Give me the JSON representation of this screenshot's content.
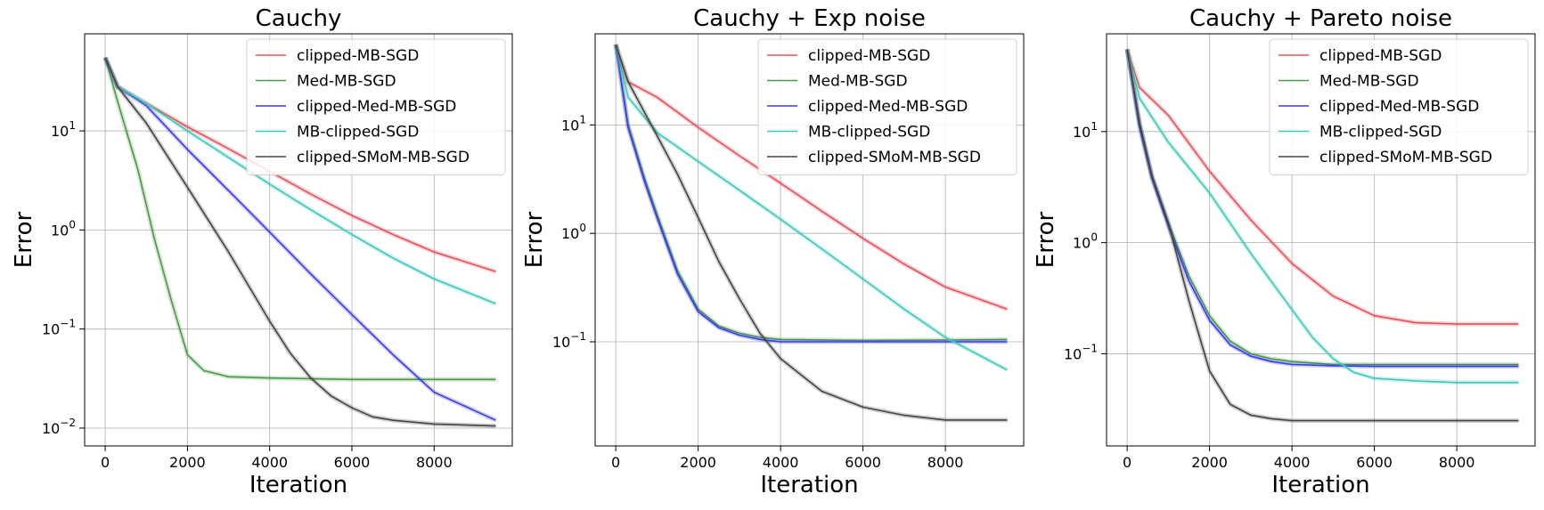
{
  "chart_data": [
    {
      "type": "line",
      "title": "Cauchy",
      "xlabel": "Iteration",
      "ylabel": "Error",
      "yscale": "log",
      "xlim": [
        -500,
        9900
      ],
      "ylim_exp": [
        -2.18,
        1.98
      ],
      "xticks": [
        0,
        2000,
        4000,
        6000,
        8000
      ],
      "yticks": [
        {
          "exp": 1,
          "label": "10^1"
        },
        {
          "exp": 0,
          "label": "10^0"
        },
        {
          "exp": -1,
          "label": "10^−1"
        },
        {
          "exp": -2,
          "label": "10^−2"
        }
      ],
      "legend_position": "top-right",
      "series": [
        {
          "name": "clipped-MB-SGD",
          "color": "#e8505a",
          "x": [
            0,
            300,
            1000,
            2000,
            3000,
            4000,
            5000,
            6000,
            7000,
            8000,
            9500
          ],
          "y": [
            55,
            28,
            19,
            11,
            6.6,
            3.9,
            2.3,
            1.4,
            0.9,
            0.6,
            0.38
          ]
        },
        {
          "name": "Med-MB-SGD",
          "color": "#4a9a4a",
          "x": [
            0,
            300,
            800,
            1200,
            1600,
            2000,
            2400,
            3000,
            4000,
            6000,
            8000,
            9500
          ],
          "y": [
            55,
            20,
            4,
            0.8,
            0.2,
            0.055,
            0.038,
            0.033,
            0.032,
            0.031,
            0.031,
            0.031
          ]
        },
        {
          "name": "clipped-Med-MB-SGD",
          "color": "#3a3ae8",
          "x": [
            0,
            300,
            1000,
            2000,
            3000,
            4000,
            5000,
            6000,
            7000,
            8000,
            9500
          ],
          "y": [
            55,
            28,
            18,
            6.5,
            2.5,
            0.95,
            0.36,
            0.14,
            0.055,
            0.023,
            0.012
          ]
        },
        {
          "name": "MB-clipped-SGD",
          "color": "#40c8b8",
          "x": [
            0,
            300,
            1000,
            2000,
            3000,
            4000,
            5000,
            6000,
            7000,
            8000,
            9500
          ],
          "y": [
            55,
            28,
            19,
            10,
            5.4,
            2.9,
            1.6,
            0.9,
            0.52,
            0.32,
            0.18
          ]
        },
        {
          "name": "clipped-SMoM-MB-SGD",
          "color": "#444444",
          "x": [
            0,
            300,
            1000,
            2000,
            3000,
            4000,
            4500,
            5000,
            5500,
            6000,
            6500,
            7000,
            8000,
            9500
          ],
          "y": [
            55,
            28,
            12,
            2.7,
            0.6,
            0.12,
            0.057,
            0.032,
            0.021,
            0.016,
            0.013,
            0.012,
            0.011,
            0.0105
          ]
        }
      ]
    },
    {
      "type": "line",
      "title": "Cauchy + Exp noise",
      "xlabel": "Iteration",
      "ylabel": "Error",
      "yscale": "log",
      "xlim": [
        -500,
        9900
      ],
      "ylim_exp": [
        -1.96,
        1.84
      ],
      "xticks": [
        0,
        2000,
        4000,
        6000,
        8000
      ],
      "yticks": [
        {
          "exp": 1,
          "label": "10^1"
        },
        {
          "exp": 0,
          "label": "10^0"
        },
        {
          "exp": -1,
          "label": "10^−1"
        }
      ],
      "legend_position": "top-right",
      "series": [
        {
          "name": "clipped-MB-SGD",
          "color": "#e8505a",
          "x": [
            0,
            300,
            1000,
            2000,
            3000,
            4000,
            5000,
            6000,
            7000,
            8000,
            9500
          ],
          "y": [
            55,
            25,
            18,
            9.5,
            5.2,
            2.9,
            1.6,
            0.9,
            0.52,
            0.32,
            0.2
          ]
        },
        {
          "name": "Med-MB-SGD",
          "color": "#4a9a4a",
          "x": [
            0,
            300,
            700,
            1000,
            1500,
            2000,
            2500,
            3000,
            3500,
            4000,
            6000,
            8000,
            9500
          ],
          "y": [
            55,
            10,
            3.2,
            1.5,
            0.45,
            0.2,
            0.14,
            0.12,
            0.11,
            0.105,
            0.103,
            0.104,
            0.105
          ]
        },
        {
          "name": "clipped-Med-MB-SGD",
          "color": "#3a3ae8",
          "x": [
            0,
            300,
            700,
            1000,
            1500,
            2000,
            2500,
            3000,
            3500,
            4000,
            6000,
            8000,
            9500
          ],
          "y": [
            55,
            9.5,
            3,
            1.4,
            0.42,
            0.19,
            0.135,
            0.115,
            0.105,
            0.1,
            0.1,
            0.1,
            0.1
          ]
        },
        {
          "name": "MB-clipped-SGD",
          "color": "#40c8b8",
          "x": [
            0,
            300,
            1000,
            2000,
            3000,
            4000,
            5000,
            6000,
            7000,
            8000,
            9500
          ],
          "y": [
            55,
            18,
            8.5,
            4.6,
            2.5,
            1.35,
            0.72,
            0.38,
            0.2,
            0.11,
            0.055
          ]
        },
        {
          "name": "clipped-SMoM-MB-SGD",
          "color": "#444444",
          "x": [
            0,
            300,
            1000,
            1500,
            2000,
            2500,
            3000,
            3500,
            4000,
            5000,
            6000,
            7000,
            8000,
            9500
          ],
          "y": [
            55,
            25,
            8,
            3.5,
            1.4,
            0.55,
            0.25,
            0.12,
            0.07,
            0.035,
            0.025,
            0.021,
            0.019,
            0.019
          ]
        }
      ]
    },
    {
      "type": "line",
      "title": "Cauchy + Pareto noise",
      "xlabel": "Iteration",
      "ylabel": "Error",
      "yscale": "log",
      "xlim": [
        -500,
        9900
      ],
      "ylim_exp": [
        -1.83,
        1.88
      ],
      "xticks": [
        0,
        2000,
        4000,
        6000,
        8000
      ],
      "yticks": [
        {
          "exp": 1,
          "label": "10^1"
        },
        {
          "exp": 0,
          "label": "10^0"
        },
        {
          "exp": -1,
          "label": "10^−1"
        }
      ],
      "legend_position": "top-right",
      "series": [
        {
          "name": "clipped-MB-SGD",
          "color": "#e8505a",
          "x": [
            0,
            300,
            1000,
            2000,
            3000,
            4000,
            5000,
            6000,
            7000,
            8000,
            9500
          ],
          "y": [
            55,
            25,
            14,
            4.4,
            1.6,
            0.65,
            0.33,
            0.22,
            0.19,
            0.185,
            0.185
          ]
        },
        {
          "name": "Med-MB-SGD",
          "color": "#4a9a4a",
          "x": [
            0,
            300,
            600,
            1000,
            1500,
            2000,
            2500,
            3000,
            3500,
            4000,
            5000,
            6000,
            8000,
            9500
          ],
          "y": [
            55,
            12,
            4,
            1.5,
            0.5,
            0.22,
            0.13,
            0.1,
            0.09,
            0.085,
            0.08,
            0.08,
            0.08,
            0.08
          ]
        },
        {
          "name": "clipped-Med-MB-SGD",
          "color": "#3a3ae8",
          "x": [
            0,
            300,
            600,
            1000,
            1500,
            2000,
            2500,
            3000,
            3500,
            4000,
            5000,
            6000,
            8000,
            9500
          ],
          "y": [
            55,
            11,
            3.8,
            1.4,
            0.45,
            0.2,
            0.12,
            0.095,
            0.085,
            0.08,
            0.078,
            0.077,
            0.077,
            0.077
          ]
        },
        {
          "name": "MB-clipped-SGD",
          "color": "#40c8b8",
          "x": [
            0,
            300,
            1000,
            2000,
            3000,
            4000,
            4500,
            5000,
            5500,
            6000,
            7000,
            8000,
            9500
          ],
          "y": [
            55,
            20,
            8,
            2.8,
            0.8,
            0.25,
            0.14,
            0.09,
            0.068,
            0.06,
            0.057,
            0.055,
            0.055
          ]
        },
        {
          "name": "clipped-SMoM-MB-SGD",
          "color": "#444444",
          "x": [
            0,
            300,
            600,
            1000,
            1500,
            2000,
            2500,
            3000,
            3500,
            4000,
            6000,
            8000,
            9500
          ],
          "y": [
            55,
            12,
            4,
            1.5,
            0.3,
            0.07,
            0.035,
            0.028,
            0.026,
            0.025,
            0.025,
            0.025,
            0.025
          ]
        }
      ]
    }
  ]
}
